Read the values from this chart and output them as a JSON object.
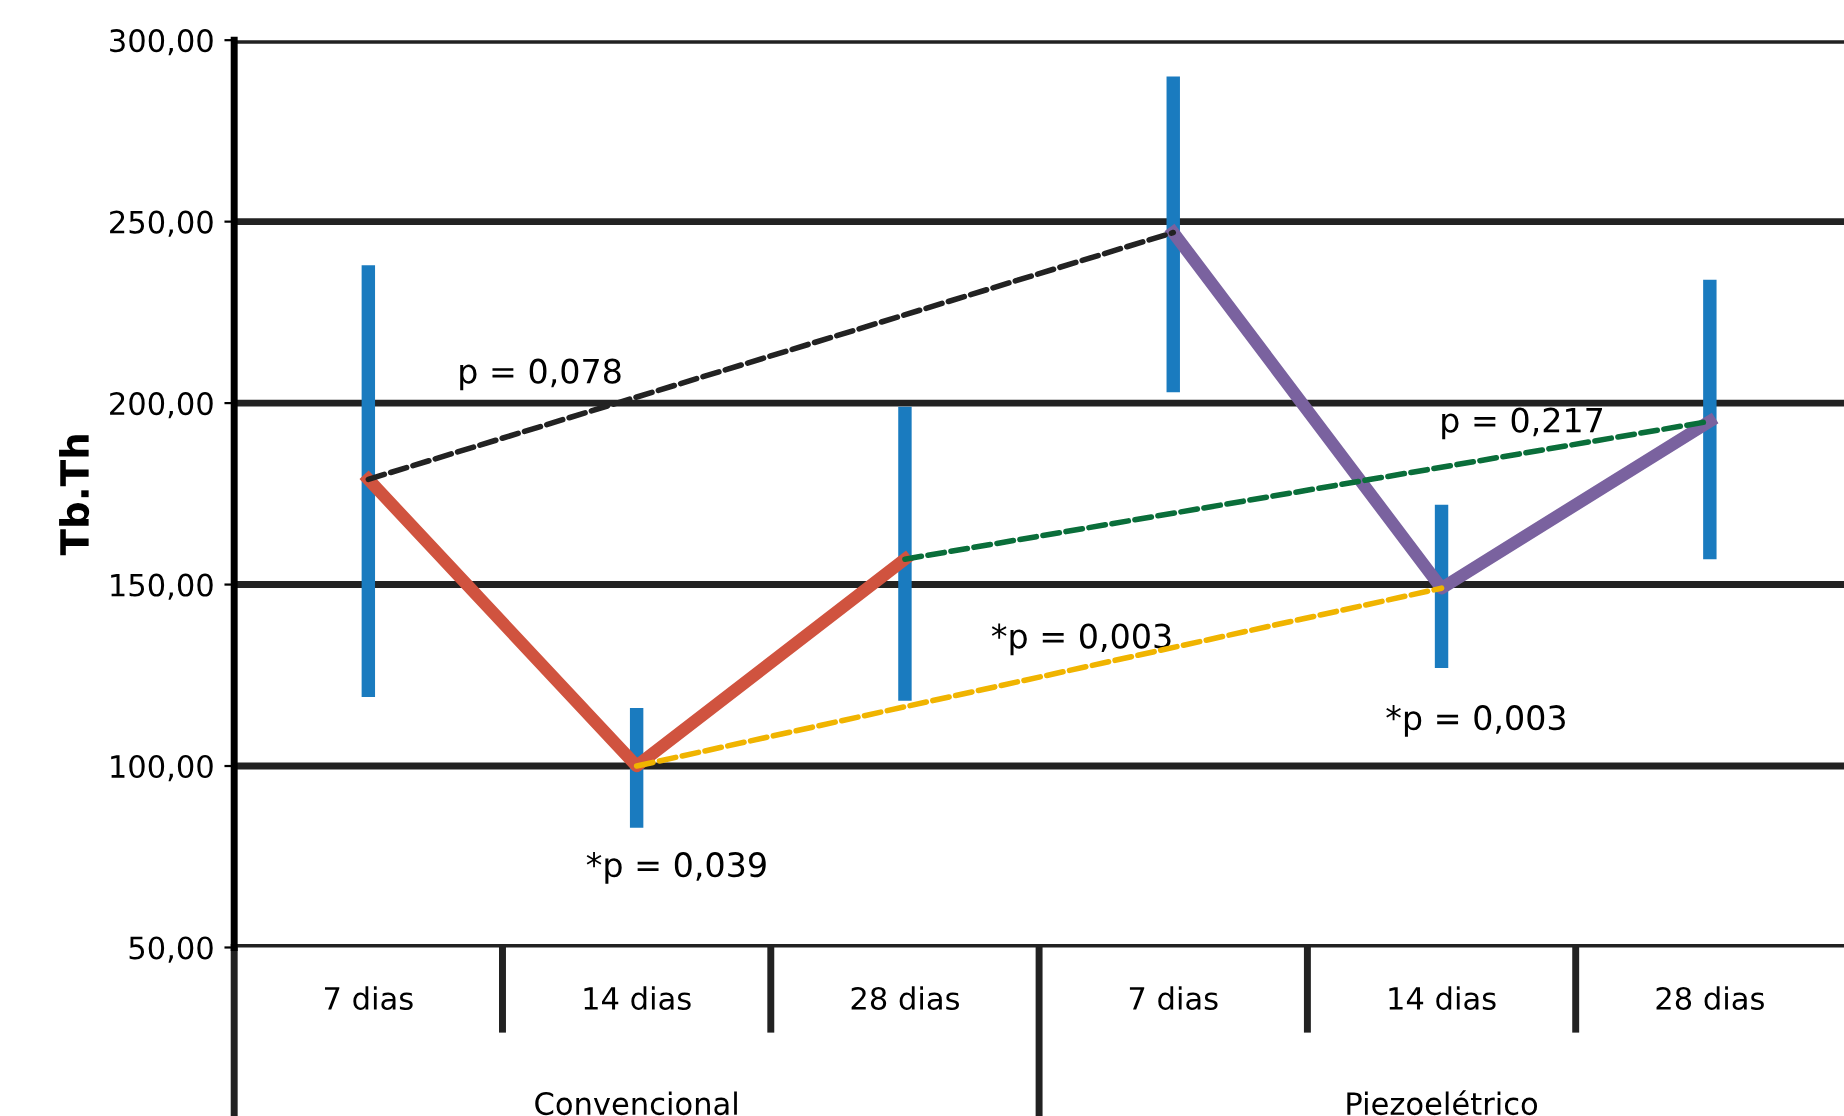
{
  "chart_data": {
    "type": "line",
    "ylabel": "Tb.Th",
    "categories": [
      "7 dias",
      "14 dias",
      "28 dias",
      "7 dias",
      "14 dias",
      "28 dias"
    ],
    "ylim": [
      50,
      300
    ],
    "yticks": [
      {
        "value": 50,
        "label": "50,00"
      },
      {
        "value": 100,
        "label": "100,00"
      },
      {
        "value": 150,
        "label": "150,00"
      },
      {
        "value": 200,
        "label": "200,00"
      },
      {
        "value": 250,
        "label": "250,00"
      },
      {
        "value": 300,
        "label": "300,00"
      }
    ],
    "grid": "y",
    "series": [
      {
        "type": "bar",
        "color": "#1a7bbf",
        "base": [
          119,
          83,
          118,
          203,
          127,
          157
        ],
        "values": [
          119,
          33,
          81,
          87,
          45,
          77
        ]
      },
      {
        "color": "#d0533f",
        "values": [
          179,
          100,
          157,
          null,
          null,
          null
        ]
      },
      {
        "color": "#7a629f",
        "values": [
          null,
          null,
          null,
          247,
          149,
          195
        ]
      },
      {
        "color": "#222222",
        "line_style": "dashed",
        "values": [
          179,
          null,
          null,
          247,
          null,
          null
        ]
      },
      {
        "color": "#f0b400",
        "line_style": "dashed",
        "values": [
          null,
          100,
          null,
          null,
          149,
          null
        ]
      },
      {
        "color": "#0a6e3a",
        "line_style": "dashed",
        "values": [
          null,
          null,
          157,
          null,
          null,
          195
        ]
      }
    ],
    "annotations": [
      "Convencional",
      "Piezoelétrico",
      "p = 0,078",
      "*p = 0,039",
      "*p = 0,003",
      "p = 0,217",
      "*p = 0,003"
    ]
  }
}
